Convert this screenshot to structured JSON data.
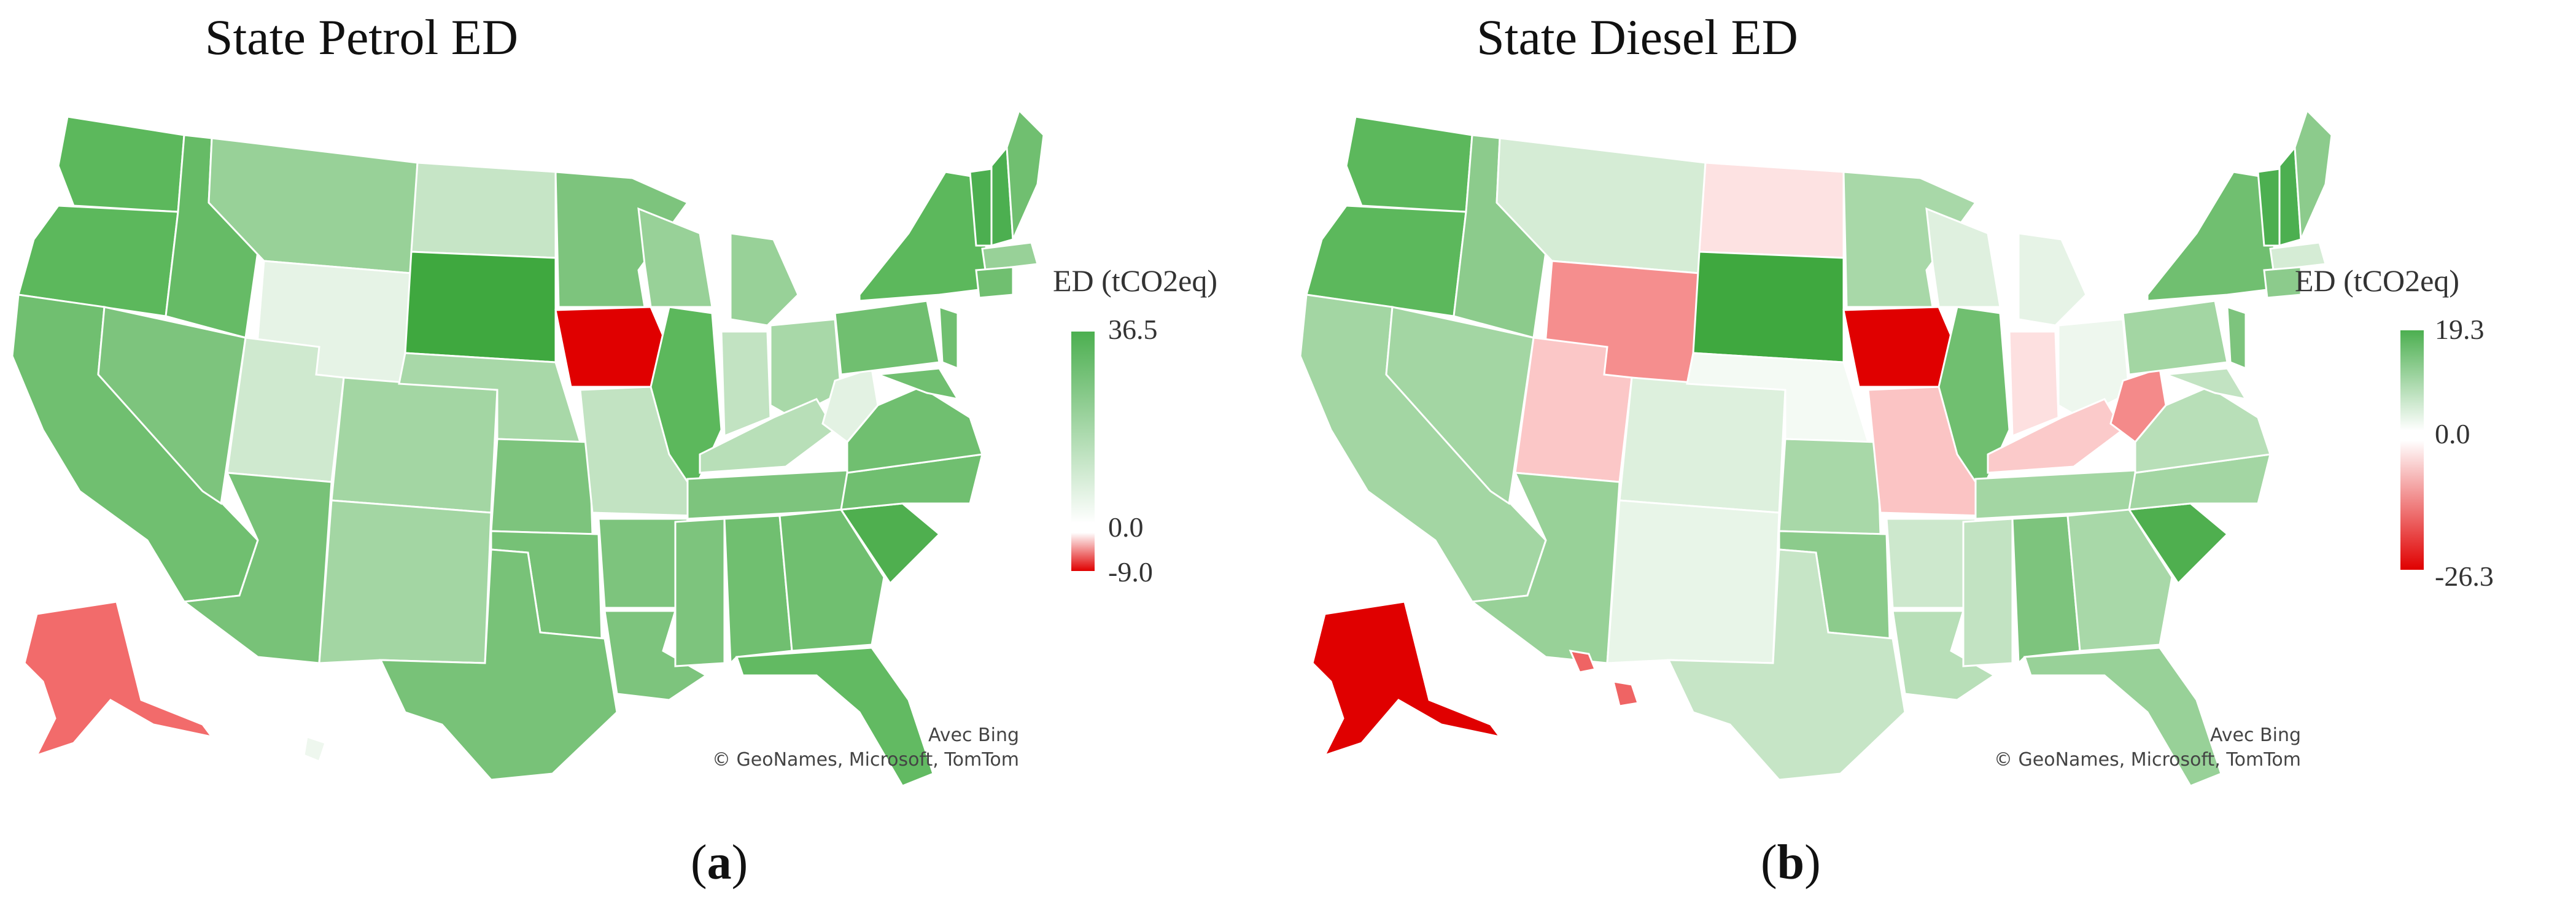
{
  "panels": [
    {
      "title": "State Petrol ED",
      "legend": {
        "title": "ED (tCO2eq)",
        "max_label": "36.5",
        "zero_label": "0.0",
        "min_label": "-9.0",
        "max": 36.5,
        "zero": 0.0,
        "min": -9.0
      },
      "attribution": {
        "line1": "Avec Bing",
        "line2": "© GeoNames, Microsoft, TomTom"
      },
      "sublabel": {
        "open": "(",
        "letter": "a",
        "close": ")"
      },
      "colors": {
        "positive": "#4caf50",
        "zero": "#ffffff",
        "negative": "#e00000"
      }
    },
    {
      "title": "State Diesel ED",
      "legend": {
        "title": "ED (tCO2eq)",
        "max_label": "19.3",
        "zero_label": "0.0",
        "min_label": "-26.3",
        "max": 19.3,
        "zero": 0.0,
        "min": -26.3
      },
      "attribution": {
        "line1": "Avec Bing",
        "line2": "© GeoNames, Microsoft, TomTom"
      },
      "sublabel": {
        "open": "(",
        "letter": "b",
        "close": ")"
      },
      "colors": {
        "positive": "#4caf50",
        "zero": "#ffffff",
        "negative": "#e00000"
      }
    }
  ]
}
